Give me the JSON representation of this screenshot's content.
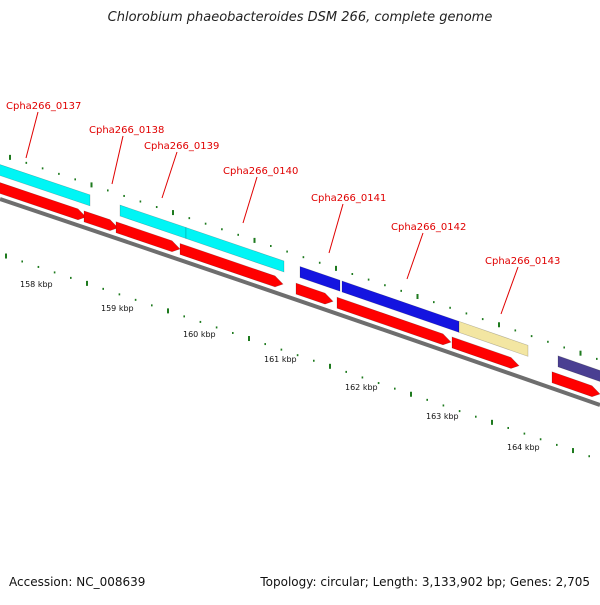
{
  "title": "Chlorobium phaeobacteroides DSM 266, complete genome",
  "accession": "Accession: NC_008639",
  "summary": "Topology: circular; Length: 3,133,902 bp; Genes: 2,705",
  "colors": {
    "label": "#e00000",
    "cds_red": "#ff0000",
    "cyan": "#00f5f5",
    "blue": "#1414e0",
    "beige": "#f3e6a2",
    "purple": "#4a3f92",
    "backbone": "#7a7a7a",
    "tick": "#1e7a1e"
  },
  "genes": [
    {
      "name": "Cpha266_0137"
    },
    {
      "name": "Cpha266_0138"
    },
    {
      "name": "Cpha266_0139"
    },
    {
      "name": "Cpha266_0140"
    },
    {
      "name": "Cpha266_0141"
    },
    {
      "name": "Cpha266_0142"
    },
    {
      "name": "Cpha266_0143"
    }
  ],
  "scale_labels": [
    "158 kbp",
    "159 kbp",
    "160 kbp",
    "161 kbp",
    "162 kbp",
    "163 kbp",
    "164 kbp"
  ]
}
